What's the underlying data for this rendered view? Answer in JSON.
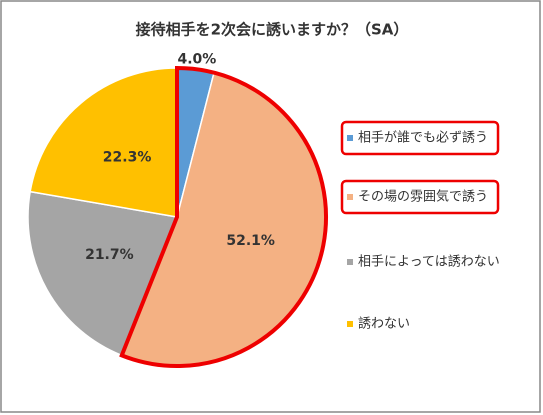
{
  "chart_data": {
    "type": "pie",
    "title": "接待相手を2次会に誘いますか？（SA）",
    "categories": [
      "相手が誰でも必ず誘う",
      "その場の雰囲気で誘う",
      "相手によっては誘わない",
      "誘わない"
    ],
    "values": [
      4.0,
      52.1,
      21.7,
      22.3
    ],
    "value_labels": [
      "4.0%",
      "52.1%",
      "21.7%",
      "22.3%"
    ],
    "colors": [
      "#5b9bd5",
      "#f4b183",
      "#a5a5a5",
      "#ffc000"
    ],
    "legend": "right"
  }
}
